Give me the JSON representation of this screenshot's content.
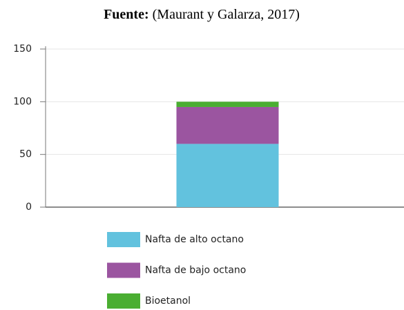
{
  "chart_data": {
    "type": "stacked_bar",
    "source_label": "Fuente:",
    "source": "(Maurant y Galarza, 2017)",
    "categories": [
      null
    ],
    "series": [
      {
        "name": "Nafta de alto octano",
        "color": "#62c2de",
        "values": [
          60
        ]
      },
      {
        "name": "Nafta de bajo octano",
        "color": "#9b55a0",
        "values": [
          35
        ]
      },
      {
        "name": "Bioetanol",
        "color": "#4aae32",
        "values": [
          5
        ]
      }
    ],
    "ylim": [
      0,
      150
    ],
    "yticks": [
      0,
      50,
      100,
      150
    ],
    "grid": true,
    "legend": "bottom"
  }
}
